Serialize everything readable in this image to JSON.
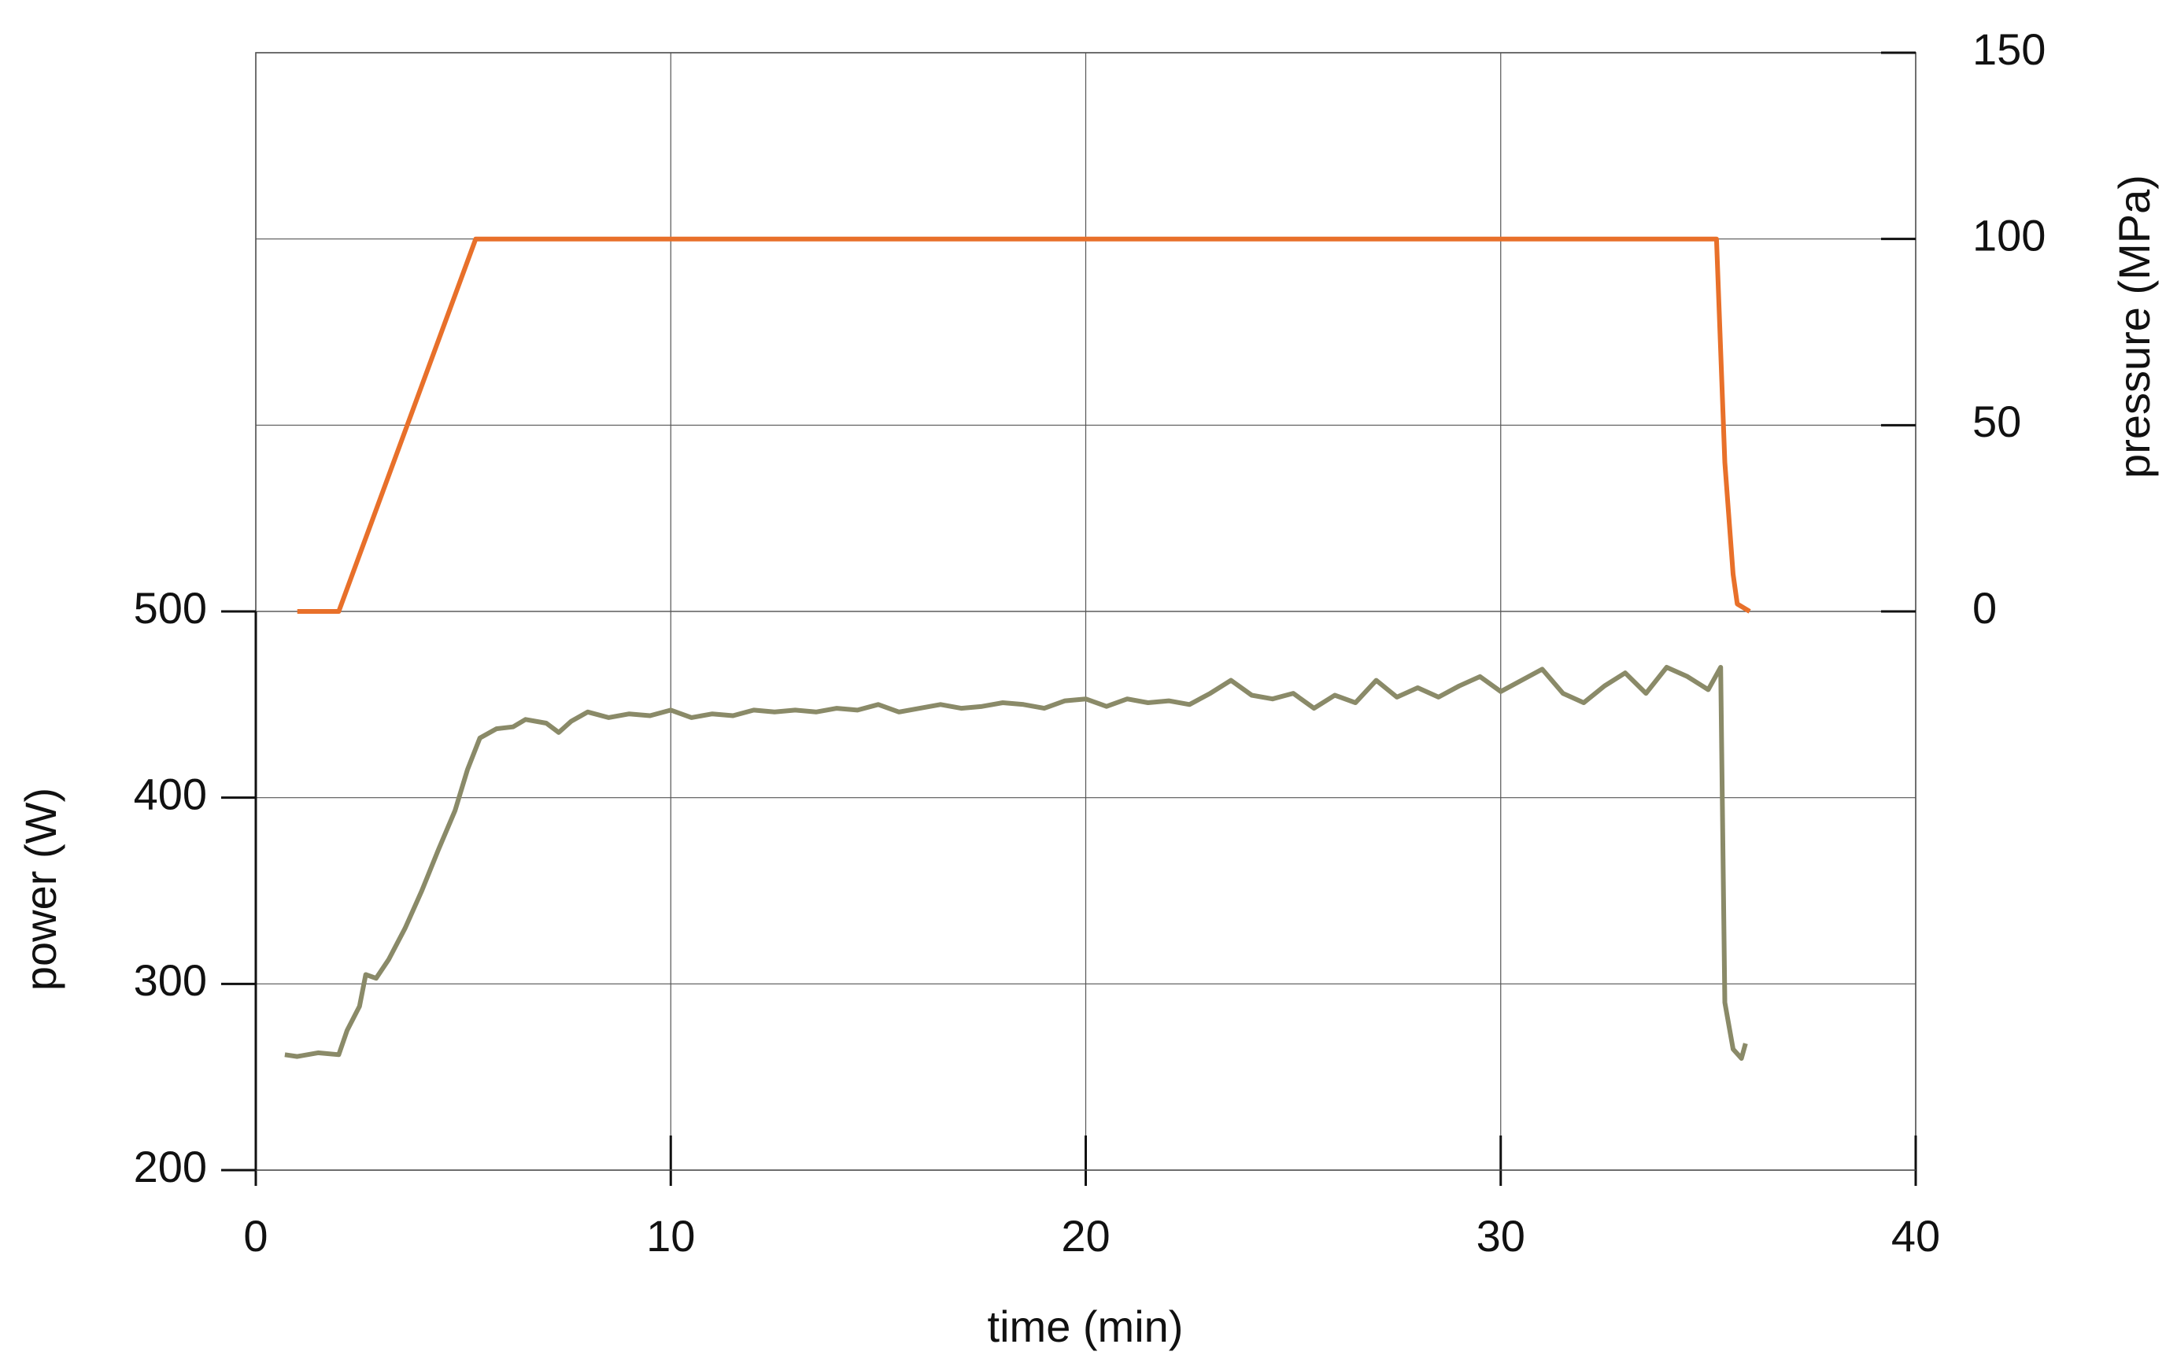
{
  "chart_data": {
    "type": "line",
    "xlabel": "time (min)",
    "ylabel": "power (W)",
    "y2label": "pressure (MPa)",
    "xlim": [
      0,
      40
    ],
    "xticks": [
      0,
      10,
      20,
      30,
      40
    ],
    "ylim": [
      200,
      800
    ],
    "yticks": [
      200,
      300,
      400,
      500
    ],
    "y2lim": [
      -150,
      150
    ],
    "y2ticks": [
      0,
      50,
      100,
      150
    ],
    "grid": true,
    "series": [
      {
        "color": "#8a8a68",
        "axis": "y",
        "x": [
          0.7,
          1.0,
          1.5,
          2.0,
          2.2,
          2.5,
          2.65,
          2.9,
          3.2,
          3.6,
          4.0,
          4.4,
          4.8,
          5.1,
          5.4,
          5.8,
          6.2,
          6.5,
          7.0,
          7.3,
          7.6,
          8.0,
          8.5,
          9.0,
          9.5,
          10.0,
          10.5,
          11.0,
          11.5,
          12.0,
          12.5,
          13.0,
          13.5,
          14.0,
          14.5,
          15.0,
          15.5,
          16.0,
          16.5,
          17.0,
          17.5,
          18.0,
          18.5,
          19.0,
          19.5,
          20.0,
          20.5,
          21.0,
          21.5,
          22.0,
          22.5,
          23.0,
          23.5,
          24.0,
          24.5,
          25.0,
          25.5,
          26.0,
          26.5,
          27.0,
          27.5,
          28.0,
          28.5,
          29.0,
          29.5,
          30.0,
          30.5,
          31.0,
          31.5,
          32.0,
          32.5,
          33.0,
          33.5,
          34.0,
          34.5,
          35.0,
          35.3,
          35.4,
          35.6,
          35.8,
          35.9
        ],
        "values": [
          262,
          261,
          263,
          262,
          275,
          288,
          305,
          303,
          313,
          330,
          350,
          372,
          393,
          415,
          432,
          437,
          438,
          442,
          440,
          435,
          441,
          446,
          443,
          445,
          444,
          447,
          443,
          445,
          444,
          447,
          446,
          447,
          446,
          448,
          447,
          450,
          446,
          448,
          450,
          448,
          449,
          451,
          450,
          448,
          452,
          453,
          449,
          453,
          451,
          452,
          450,
          456,
          463,
          455,
          453,
          456,
          448,
          455,
          451,
          463,
          454,
          459,
          454,
          460,
          465,
          457,
          463,
          469,
          456,
          451,
          460,
          467,
          456,
          470,
          465,
          458,
          470,
          290,
          265,
          260,
          268
        ]
      },
      {
        "color": "#e8702a",
        "axis": "y2",
        "x": [
          1.0,
          2.0,
          5.3,
          35.2,
          35.4,
          35.6,
          35.7,
          36.0
        ],
        "values": [
          0,
          0,
          100,
          100,
          40,
          10,
          2,
          0
        ]
      }
    ]
  }
}
